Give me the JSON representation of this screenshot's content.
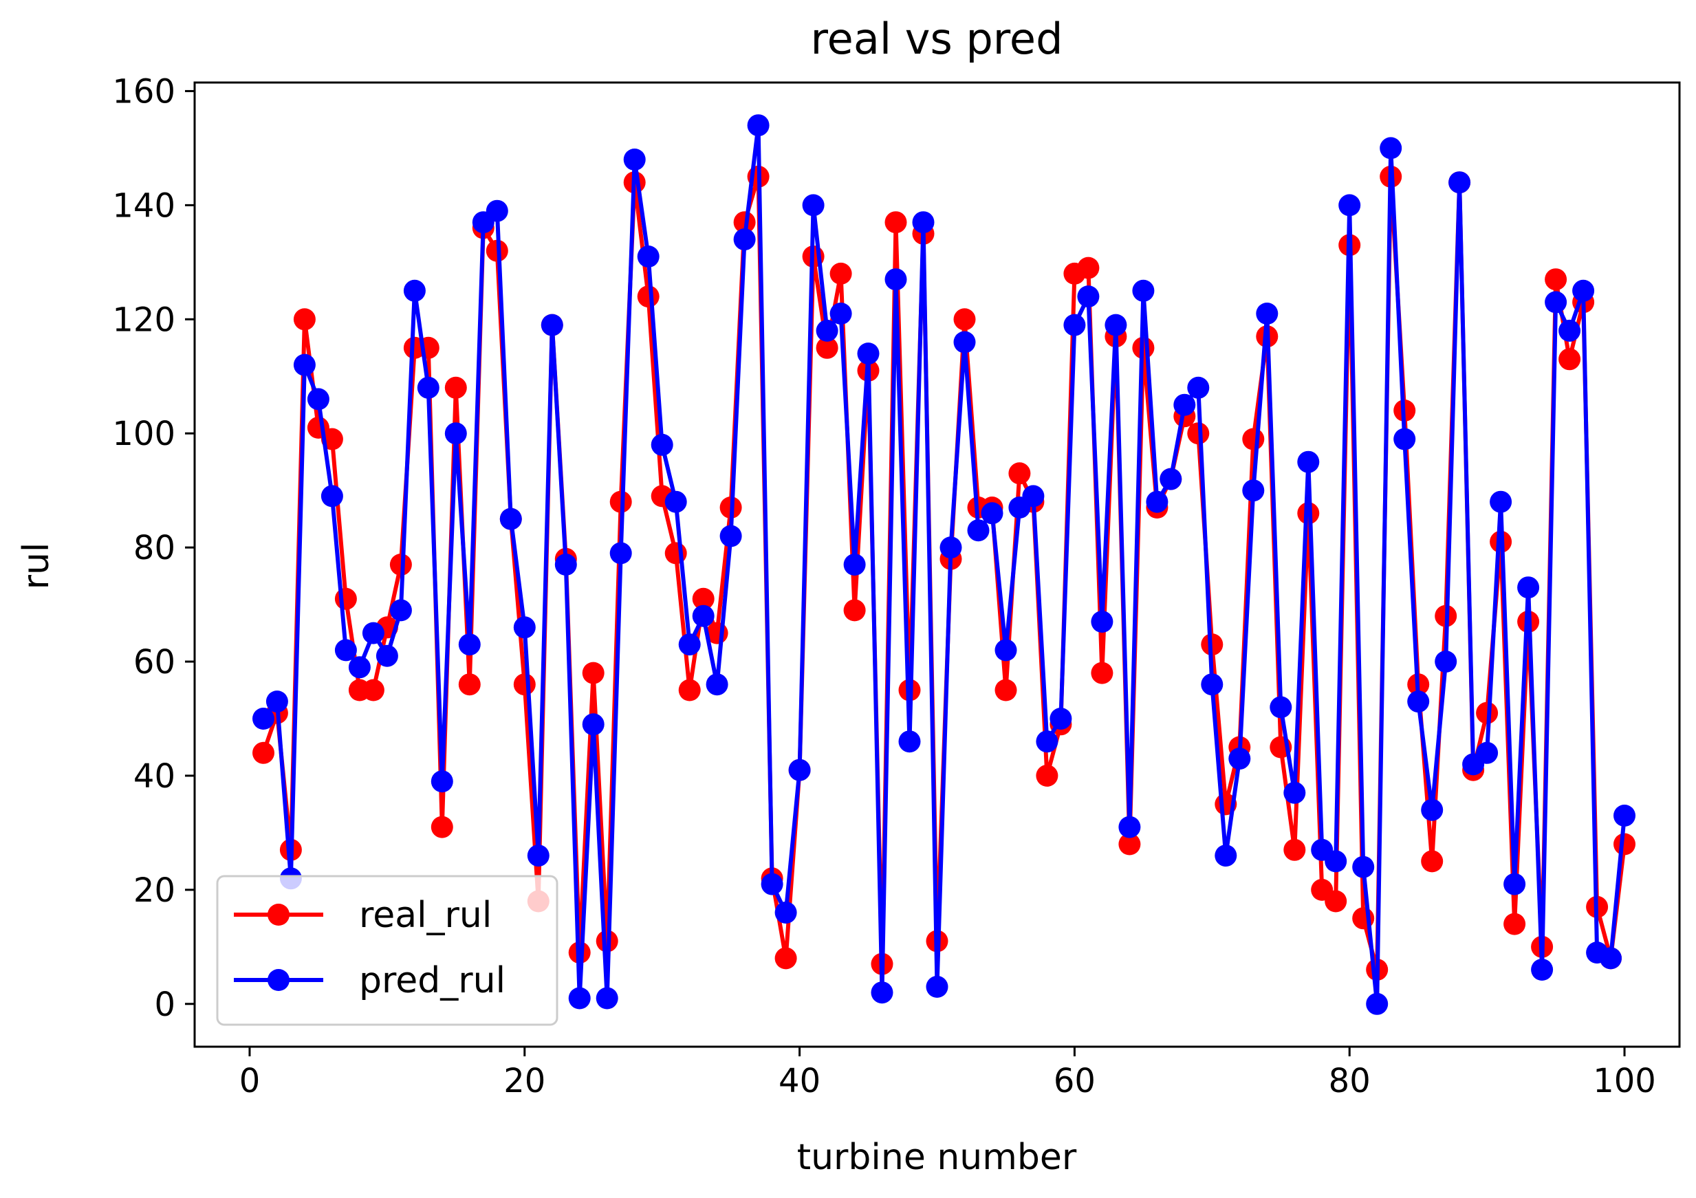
{
  "chart_data": {
    "type": "line",
    "title": "real vs pred",
    "xlabel": "turbine number",
    "ylabel": "rul",
    "xlim": [
      -4,
      104
    ],
    "ylim": [
      -7.5,
      161.5
    ],
    "x_ticks": [
      0,
      20,
      40,
      60,
      80,
      100
    ],
    "y_ticks": [
      0,
      20,
      40,
      60,
      80,
      100,
      120,
      140,
      160
    ],
    "grid": false,
    "legend_position": "lower-left",
    "x": [
      1,
      2,
      3,
      4,
      5,
      6,
      7,
      8,
      9,
      10,
      11,
      12,
      13,
      14,
      15,
      16,
      17,
      18,
      19,
      20,
      21,
      22,
      23,
      24,
      25,
      26,
      27,
      28,
      29,
      30,
      31,
      32,
      33,
      34,
      35,
      36,
      37,
      38,
      39,
      40,
      41,
      42,
      43,
      44,
      45,
      46,
      47,
      48,
      49,
      50,
      51,
      52,
      53,
      54,
      55,
      56,
      57,
      58,
      59,
      60,
      61,
      62,
      63,
      64,
      65,
      66,
      67,
      68,
      69,
      70,
      71,
      72,
      73,
      74,
      75,
      76,
      77,
      78,
      79,
      80,
      81,
      82,
      83,
      84,
      85,
      86,
      87,
      88,
      89,
      90,
      91,
      92,
      93,
      94,
      95,
      96,
      97,
      98,
      99,
      100
    ],
    "series": [
      {
        "name": "real_rul",
        "color": "#ff0000",
        "values": [
          44,
          51,
          27,
          120,
          101,
          99,
          71,
          55,
          55,
          66,
          77,
          115,
          115,
          31,
          108,
          56,
          136,
          132,
          85,
          56,
          18,
          119,
          78,
          9,
          58,
          11,
          88,
          144,
          124,
          89,
          79,
          55,
          71,
          65,
          87,
          137,
          145,
          22,
          8,
          41,
          131,
          115,
          128,
          69,
          111,
          7,
          137,
          55,
          135,
          11,
          78,
          120,
          87,
          87,
          55,
          93,
          88,
          40,
          49,
          128,
          129,
          58,
          117,
          28,
          115,
          87,
          92,
          103,
          100,
          63,
          35,
          45,
          99,
          117,
          45,
          27,
          86,
          20,
          18,
          133,
          15,
          6,
          145,
          104,
          56,
          25,
          68,
          144,
          41,
          51,
          81,
          14,
          67,
          10,
          127,
          113,
          123,
          17,
          8,
          28
        ]
      },
      {
        "name": "pred_rul",
        "color": "#0000ff",
        "values": [
          50,
          53,
          22,
          112,
          106,
          89,
          62,
          59,
          65,
          61,
          69,
          125,
          108,
          39,
          100,
          63,
          137,
          139,
          85,
          66,
          26,
          119,
          77,
          1,
          49,
          1,
          79,
          148,
          131,
          98,
          88,
          63,
          68,
          56,
          82,
          134,
          154,
          21,
          16,
          41,
          140,
          118,
          121,
          77,
          114,
          2,
          127,
          46,
          137,
          3,
          80,
          116,
          83,
          86,
          62,
          87,
          89,
          46,
          50,
          119,
          124,
          67,
          119,
          31,
          125,
          88,
          92,
          105,
          108,
          56,
          26,
          43,
          90,
          121,
          52,
          37,
          95,
          27,
          25,
          140,
          24,
          0,
          150,
          99,
          53,
          34,
          60,
          144,
          42,
          44,
          88,
          21,
          73,
          6,
          123,
          118,
          125,
          9,
          8,
          33
        ]
      }
    ]
  }
}
